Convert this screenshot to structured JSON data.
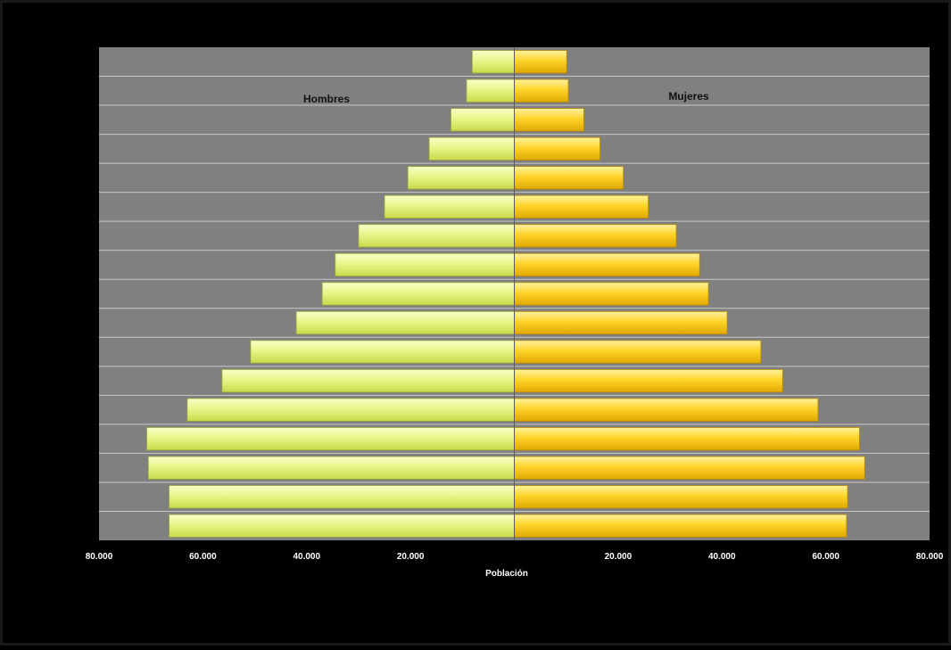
{
  "chart_data": {
    "type": "bar",
    "orientation": "horizontal",
    "subtype": "population-pyramid",
    "xlabel": "Población",
    "xlim": [
      -80000,
      80000
    ],
    "x_ticks": [
      -80000,
      -60000,
      -40000,
      -20000,
      0,
      20000,
      40000,
      60000,
      80000
    ],
    "x_tick_labels": [
      "80.000",
      "60.000",
      "40.000",
      "20.000",
      "",
      "20.000",
      "40.000",
      "60.000",
      "80.000"
    ],
    "grid": true,
    "colors": {
      "background": "#000000",
      "plot_area": "#808080",
      "gridline": "#c8c8c8",
      "hombres": "#e6f47a",
      "mujeres": "#ffd11a"
    },
    "series": [
      {
        "name": "Hombres",
        "side": "left",
        "values": [
          66500,
          66500,
          70500,
          70800,
          63000,
          56300,
          50800,
          42000,
          37000,
          34500,
          30000,
          25000,
          20500,
          16400,
          12200,
          9200,
          8100
        ]
      },
      {
        "name": "Mujeres",
        "side": "right",
        "values": [
          64000,
          64200,
          67500,
          66500,
          58500,
          51700,
          47500,
          41000,
          37400,
          35700,
          31200,
          25800,
          21000,
          16500,
          13400,
          10400,
          10100
        ]
      }
    ]
  }
}
